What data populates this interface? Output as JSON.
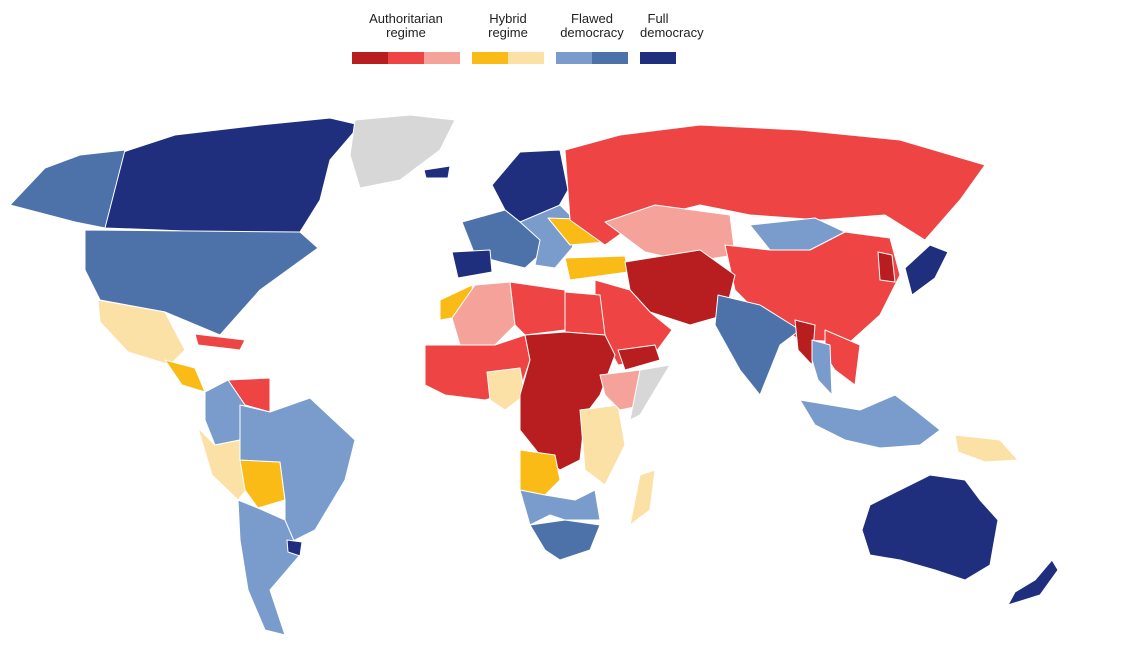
{
  "legend": {
    "groups": [
      {
        "label": "Authoritarian\nregime",
        "colors": [
          "#b81d1f",
          "#ee4443",
          "#f5a39a"
        ]
      },
      {
        "label": "Hybrid\nregime",
        "colors": [
          "#fbbb16",
          "#fbe1a6"
        ]
      },
      {
        "label": "Flawed\ndemocracy",
        "colors": [
          "#7a9ccc",
          "#4d72aa"
        ]
      },
      {
        "label": "Full\ndemocracy",
        "colors": [
          "#1f2f7e"
        ]
      }
    ]
  },
  "colors": {
    "no_data": "#d7d7d7",
    "auth_dark": "#b81d1f",
    "auth_mid": "#ee4443",
    "auth_light": "#f5a39a",
    "hybrid_dark": "#fbbb16",
    "hybrid_light": "#fbe1a6",
    "flawed_light": "#7a9ccc",
    "flawed_dark": "#4d72aa",
    "full": "#1f2f7e"
  },
  "regions": [
    {
      "name": "canada",
      "cat": "full"
    },
    {
      "name": "alaska",
      "cat": "flawed_dark"
    },
    {
      "name": "usa",
      "cat": "flawed_dark"
    },
    {
      "name": "greenland",
      "cat": "no_data"
    },
    {
      "name": "mexico",
      "cat": "hybrid_light"
    },
    {
      "name": "central-america",
      "cat": "hybrid_dark"
    },
    {
      "name": "cuba",
      "cat": "auth_mid"
    },
    {
      "name": "venezuela",
      "cat": "auth_mid"
    },
    {
      "name": "colombia",
      "cat": "flawed_light"
    },
    {
      "name": "peru",
      "cat": "hybrid_light"
    },
    {
      "name": "bolivia",
      "cat": "hybrid_dark"
    },
    {
      "name": "brazil",
      "cat": "flawed_light"
    },
    {
      "name": "southern-cone",
      "cat": "flawed_light"
    },
    {
      "name": "uruguay",
      "cat": "full"
    },
    {
      "name": "iceland",
      "cat": "full"
    },
    {
      "name": "scandinavia",
      "cat": "full"
    },
    {
      "name": "western-europe",
      "cat": "flawed_dark"
    },
    {
      "name": "spain",
      "cat": "full"
    },
    {
      "name": "eastern-europe",
      "cat": "flawed_light"
    },
    {
      "name": "ukraine",
      "cat": "hybrid_dark"
    },
    {
      "name": "turkey",
      "cat": "hybrid_dark"
    },
    {
      "name": "russia",
      "cat": "auth_mid"
    },
    {
      "name": "kazakhstan",
      "cat": "auth_light"
    },
    {
      "name": "mongolia",
      "cat": "flawed_light"
    },
    {
      "name": "china",
      "cat": "auth_mid"
    },
    {
      "name": "korea-north",
      "cat": "auth_dark"
    },
    {
      "name": "japan",
      "cat": "full"
    },
    {
      "name": "iran-afghanistan",
      "cat": "auth_dark"
    },
    {
      "name": "arabia",
      "cat": "auth_mid"
    },
    {
      "name": "yemen",
      "cat": "auth_dark"
    },
    {
      "name": "india",
      "cat": "flawed_dark"
    },
    {
      "name": "myanmar",
      "cat": "auth_dark"
    },
    {
      "name": "indochina",
      "cat": "auth_mid"
    },
    {
      "name": "thailand",
      "cat": "flawed_light"
    },
    {
      "name": "indonesia",
      "cat": "flawed_light"
    },
    {
      "name": "png",
      "cat": "hybrid_light"
    },
    {
      "name": "australia",
      "cat": "full"
    },
    {
      "name": "new-zealand",
      "cat": "full"
    },
    {
      "name": "morocco",
      "cat": "hybrid_dark"
    },
    {
      "name": "algeria",
      "cat": "auth_light"
    },
    {
      "name": "libya",
      "cat": "auth_mid"
    },
    {
      "name": "egypt",
      "cat": "auth_mid"
    },
    {
      "name": "west-sahel",
      "cat": "auth_mid"
    },
    {
      "name": "nigeria",
      "cat": "hybrid_light"
    },
    {
      "name": "central-africa",
      "cat": "auth_dark"
    },
    {
      "name": "east-africa",
      "cat": "hybrid_light"
    },
    {
      "name": "ethiopia",
      "cat": "auth_light"
    },
    {
      "name": "somalia",
      "cat": "no_data"
    },
    {
      "name": "angola",
      "cat": "hybrid_dark"
    },
    {
      "name": "southern-africa",
      "cat": "flawed_light"
    },
    {
      "name": "south-africa",
      "cat": "flawed_dark"
    },
    {
      "name": "madagascar",
      "cat": "hybrid_light"
    }
  ]
}
